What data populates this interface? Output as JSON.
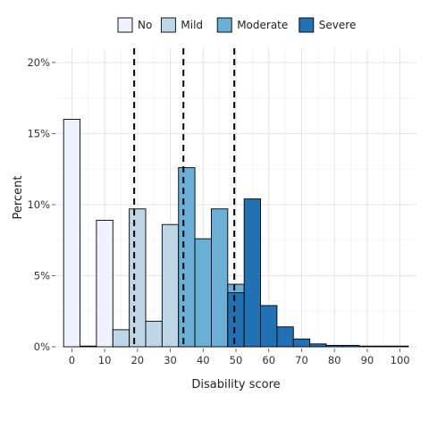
{
  "chart_data": {
    "type": "bar",
    "xlabel": "Disability score",
    "ylabel": "Percent",
    "xlim": [
      -5,
      105
    ],
    "ylim": [
      0,
      21
    ],
    "x_ticks": [
      0,
      10,
      20,
      30,
      40,
      50,
      60,
      70,
      80,
      90,
      100
    ],
    "x_tick_labels": [
      "0",
      "10",
      "20",
      "30",
      "40",
      "50",
      "60",
      "70",
      "80",
      "90",
      "100"
    ],
    "y_ticks": [
      0,
      5,
      10,
      15,
      20
    ],
    "y_tick_labels": [
      "0%",
      "5%",
      "10%",
      "15%",
      "20%"
    ],
    "grid": true,
    "legend_position": "top",
    "bin_width": 5,
    "series": [
      {
        "name": "No",
        "color": "#eff3ff",
        "bins": [
          [
            -2.5,
            16.0
          ],
          [
            2.5,
            0.05
          ],
          [
            7.5,
            8.9
          ],
          [
            12.5,
            0.05
          ]
        ]
      },
      {
        "name": "Mild",
        "color": "#bdd7e7",
        "bins": [
          [
            12.5,
            1.2
          ],
          [
            17.5,
            9.7
          ],
          [
            22.5,
            1.8
          ],
          [
            27.5,
            8.6
          ]
        ]
      },
      {
        "name": "Moderate",
        "color": "#6baed6",
        "bins": [
          [
            32.5,
            12.6
          ],
          [
            37.5,
            7.6
          ],
          [
            42.5,
            9.7
          ],
          [
            47.5,
            4.4
          ]
        ]
      },
      {
        "name": "Severe",
        "color": "#2171b5",
        "bins": [
          [
            47.5,
            3.8
          ],
          [
            52.5,
            10.4
          ],
          [
            57.5,
            2.9
          ],
          [
            62.5,
            1.4
          ],
          [
            67.5,
            0.55
          ],
          [
            72.5,
            0.2
          ],
          [
            77.5,
            0.1
          ],
          [
            82.5,
            0.1
          ],
          [
            87.5,
            0.05
          ],
          [
            92.5,
            0.05
          ],
          [
            97.5,
            0.05
          ]
        ]
      }
    ],
    "threshold_lines": [
      19,
      34,
      49.5
    ]
  }
}
